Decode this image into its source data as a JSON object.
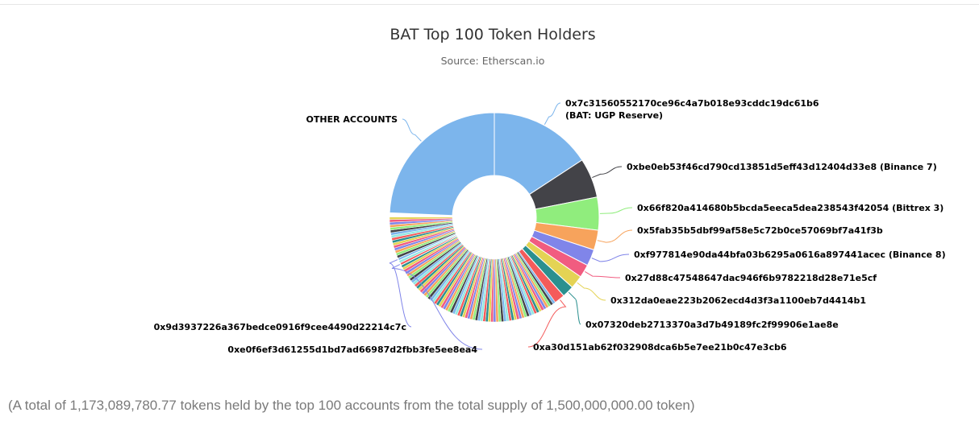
{
  "chart_data": {
    "type": "pie",
    "variant": "donut",
    "title": "BAT Top 100 Token Holders",
    "subtitle": "Source: Etherscan.io",
    "labeled_slices": [
      {
        "name": "0x7c31560552170ce96c4a7b018e93cddc19dc61b6",
        "name_line2": "(BAT: UGP Reserve)",
        "value": 15.5,
        "color": "#7cb5ec"
      },
      {
        "name": "0xbe0eb53f46cd790cd13851d5eff43d12404d33e8 (Binance 7)",
        "value": 6.0,
        "color": "#434348"
      },
      {
        "name": "0x66f820a414680b5bcda5eeca5dea238543f42054 (Bittrex 3)",
        "value": 5.0,
        "color": "#90ed7d"
      },
      {
        "name": "0x5fab35b5dbf99af58e5c72b0ce57069bf7a41f3b",
        "value": 3.0,
        "color": "#f7a35c"
      },
      {
        "name": "0xf977814e90da44bfa03b6295a0616a897441acec (Binance 8)",
        "value": 2.5,
        "color": "#8085e9"
      },
      {
        "name": "0x27d88c47548647dac946f6b9782218d28e71e5cf",
        "value": 2.0,
        "color": "#f15c80"
      },
      {
        "name": "0x312da0eae223b2062ecd4d3f3a1100eb7d4414b1",
        "value": 2.0,
        "color": "#e4d354"
      },
      {
        "name": "0x07320deb2713370a3d7b49189fc2f99906e1ae8e",
        "value": 1.8,
        "color": "#2b908f"
      },
      {
        "name": "0xa30d151ab62f032908dca6b5e7ee21b0c47e3cb6",
        "value": 1.6,
        "color": "#f45b5b"
      },
      {
        "name": "0x9d3937226a367bedce0916f9cee4490d22214c7c",
        "value": 0.9,
        "color": "#8085e9"
      },
      {
        "name": "0xe0f6ef3d61255d1bd7ad66987d2fbb3fe5ee8ea4",
        "value": 0.9,
        "color": "#8085e9"
      },
      {
        "name": "OTHER ACCOUNTS",
        "value": 24.5,
        "color": "#7cb5ec"
      }
    ],
    "unlabeled_small_slices": {
      "count": 87,
      "share_total": 34.3,
      "palette": [
        "#7cb5ec",
        "#434348",
        "#90ed7d",
        "#f7a35c",
        "#8085e9",
        "#f15c80",
        "#e4d354",
        "#2b908f",
        "#f45b5b",
        "#91e8e1"
      ]
    }
  },
  "footer": {
    "note": "(A total of 1,173,089,780.77 tokens held by the top 100 accounts from the total supply of 1,500,000,000.00 token)"
  }
}
